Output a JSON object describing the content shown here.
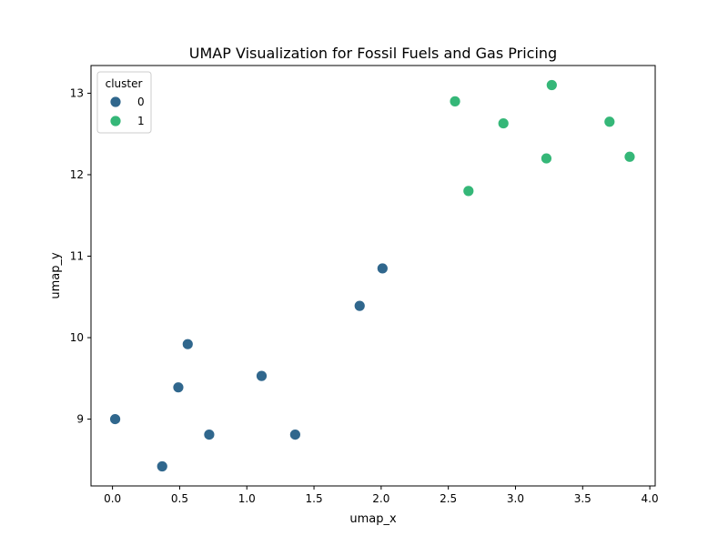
{
  "chart_data": {
    "type": "scatter",
    "title": "UMAP Visualization for Fossil Fuels and Gas Pricing",
    "xlabel": "umap_x",
    "ylabel": "umap_y",
    "xlim": [
      -0.16,
      4.04
    ],
    "ylim": [
      8.18,
      13.34
    ],
    "xticks": [
      0.0,
      0.5,
      1.0,
      1.5,
      2.0,
      2.5,
      3.0,
      3.5,
      4.0
    ],
    "xtick_labels": [
      "0.0",
      "0.5",
      "1.0",
      "1.5",
      "2.0",
      "2.5",
      "3.0",
      "3.5",
      "4.0"
    ],
    "yticks": [
      9,
      10,
      11,
      12,
      13
    ],
    "ytick_labels": [
      "9",
      "10",
      "11",
      "12",
      "13"
    ],
    "grid": false,
    "legend": {
      "title": "cluster",
      "placement": "top-left",
      "entries": [
        {
          "label": "0",
          "color": "#30678d"
        },
        {
          "label": "1",
          "color": "#35b778"
        }
      ]
    },
    "series": [
      {
        "name": "0",
        "color": "#30678d",
        "points": [
          {
            "x": 0.02,
            "y": 9.0
          },
          {
            "x": 0.37,
            "y": 8.42
          },
          {
            "x": 0.49,
            "y": 9.39
          },
          {
            "x": 0.56,
            "y": 9.92
          },
          {
            "x": 0.72,
            "y": 8.81
          },
          {
            "x": 1.11,
            "y": 9.53
          },
          {
            "x": 1.36,
            "y": 8.81
          },
          {
            "x": 1.84,
            "y": 10.39
          },
          {
            "x": 2.01,
            "y": 10.85
          }
        ]
      },
      {
        "name": "1",
        "color": "#35b778",
        "points": [
          {
            "x": 2.55,
            "y": 12.9
          },
          {
            "x": 2.65,
            "y": 11.8
          },
          {
            "x": 2.91,
            "y": 12.63
          },
          {
            "x": 3.23,
            "y": 12.2
          },
          {
            "x": 3.27,
            "y": 13.1
          },
          {
            "x": 3.7,
            "y": 12.65
          },
          {
            "x": 3.85,
            "y": 12.22
          }
        ]
      }
    ]
  }
}
